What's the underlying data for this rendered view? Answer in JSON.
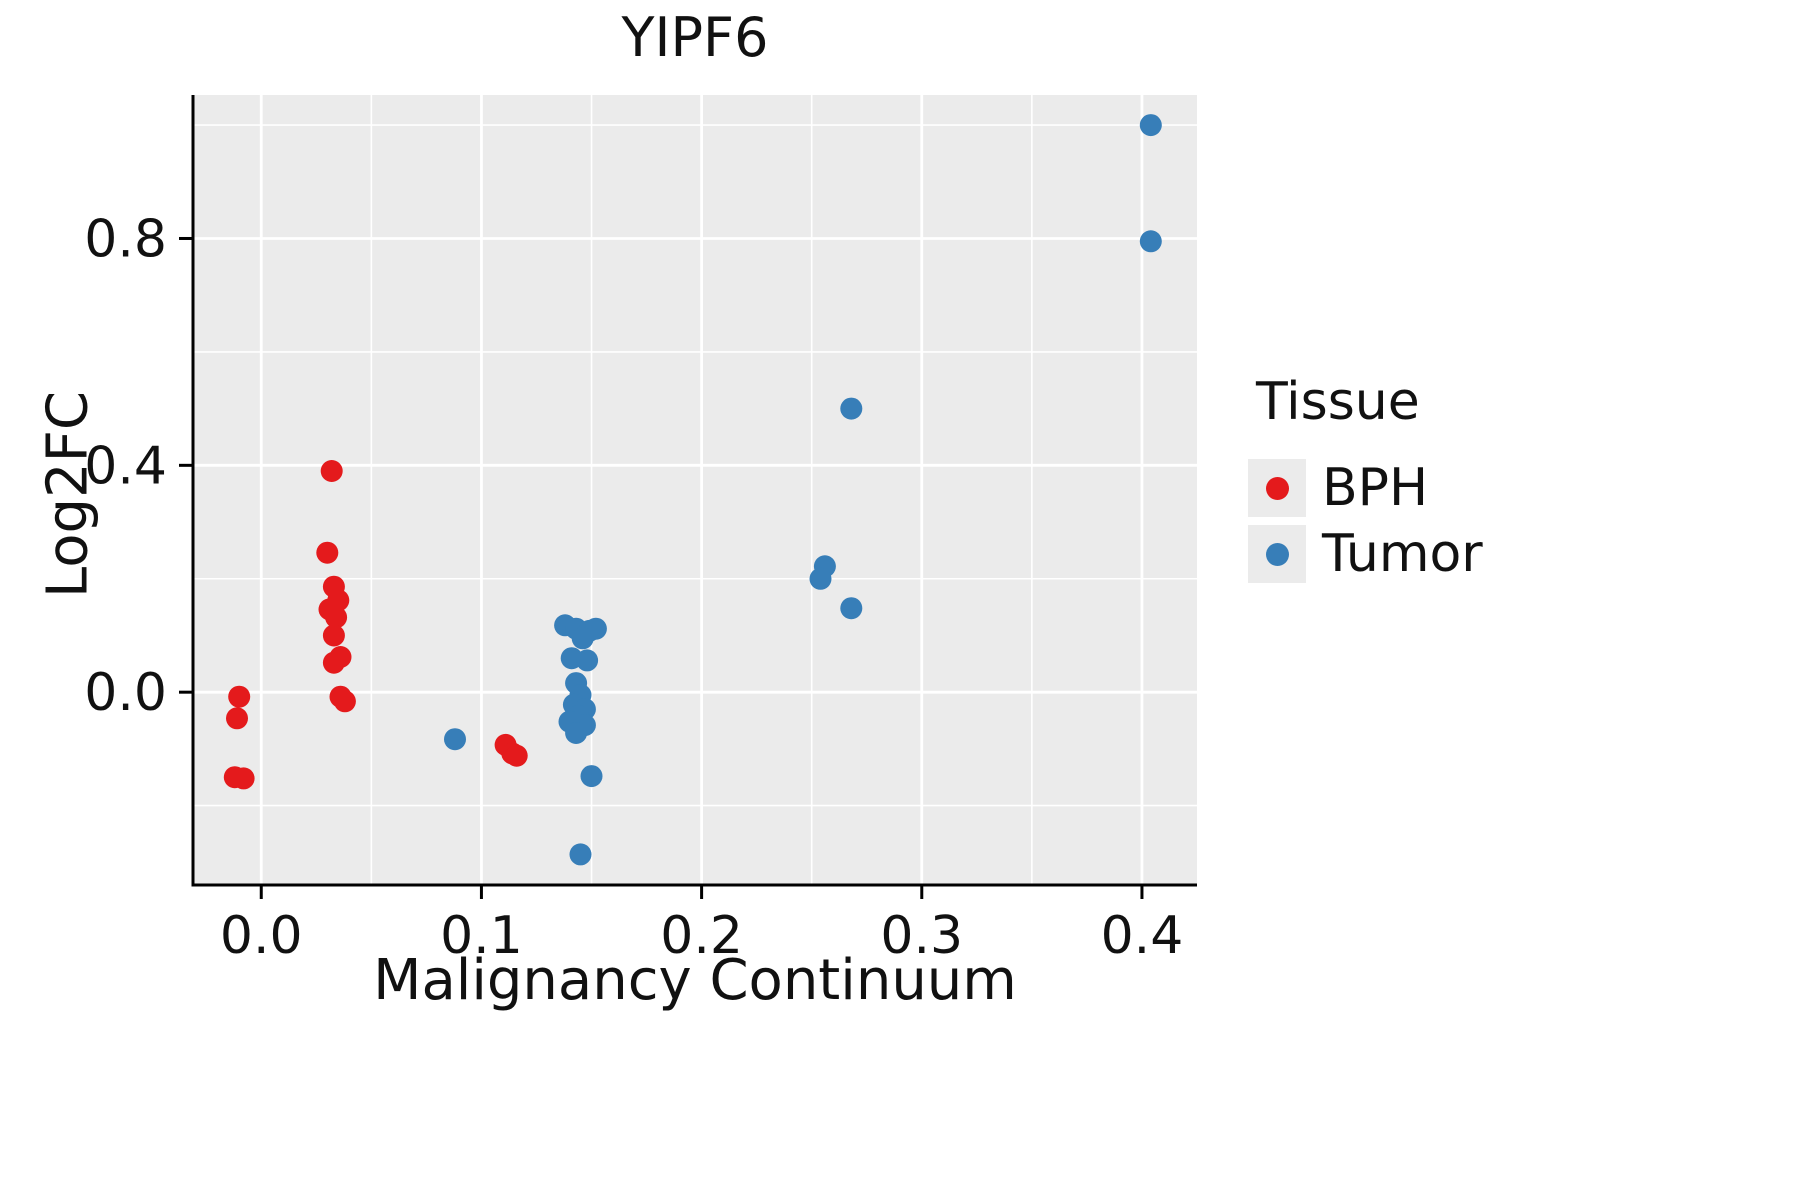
{
  "title": "YIPF6",
  "legend": {
    "title": "Tissue",
    "entries": [
      {
        "label": "BPH",
        "color": "#E41A1C"
      },
      {
        "label": "Tumor",
        "color": "#377EB8"
      }
    ]
  },
  "panel": {
    "background": "#EBEBEB",
    "grid_color": "#FFFFFF",
    "axis_color": "#000000"
  },
  "chart_data": {
    "type": "scatter",
    "title": "YIPF6",
    "xlabel": "Malignancy Continuum",
    "ylabel": "Log2FC",
    "xlim": [
      -0.031,
      0.425
    ],
    "ylim": [
      -0.34,
      1.053
    ],
    "xtick_values": [
      0.0,
      0.1,
      0.2,
      0.3,
      0.4
    ],
    "xtick_labels": [
      "0.0",
      "0.1",
      "0.2",
      "0.3",
      "0.4"
    ],
    "ytick_values": [
      0.0,
      0.4,
      0.8
    ],
    "ytick_labels": [
      "0.0",
      "0.4",
      "0.8"
    ],
    "grid": "major and minor white gridlines on grey panel",
    "legend_position": "right",
    "series": [
      {
        "name": "BPH",
        "color": "#E41A1C",
        "points": [
          [
            -0.01,
            -0.008
          ],
          [
            -0.011,
            -0.046
          ],
          [
            -0.012,
            -0.15
          ],
          [
            -0.008,
            -0.152
          ],
          [
            0.032,
            0.39
          ],
          [
            0.03,
            0.246
          ],
          [
            0.033,
            0.186
          ],
          [
            0.035,
            0.162
          ],
          [
            0.031,
            0.146
          ],
          [
            0.034,
            0.132
          ],
          [
            0.033,
            0.1
          ],
          [
            0.036,
            0.062
          ],
          [
            0.033,
            0.052
          ],
          [
            0.036,
            -0.008
          ],
          [
            0.038,
            -0.016
          ],
          [
            0.111,
            -0.093
          ],
          [
            0.114,
            -0.108
          ],
          [
            0.116,
            -0.112
          ]
        ]
      },
      {
        "name": "Tumor",
        "color": "#377EB8",
        "points": [
          [
            0.088,
            -0.083
          ],
          [
            0.138,
            0.118
          ],
          [
            0.143,
            0.112
          ],
          [
            0.149,
            0.108
          ],
          [
            0.152,
            0.112
          ],
          [
            0.146,
            0.095
          ],
          [
            0.141,
            0.06
          ],
          [
            0.148,
            0.056
          ],
          [
            0.143,
            0.016
          ],
          [
            0.145,
            -0.005
          ],
          [
            0.142,
            -0.022
          ],
          [
            0.147,
            -0.03
          ],
          [
            0.144,
            -0.042
          ],
          [
            0.14,
            -0.052
          ],
          [
            0.147,
            -0.058
          ],
          [
            0.143,
            -0.072
          ],
          [
            0.15,
            -0.148
          ],
          [
            0.145,
            -0.286
          ],
          [
            0.256,
            0.222
          ],
          [
            0.254,
            0.2
          ],
          [
            0.268,
            0.148
          ],
          [
            0.268,
            0.5
          ],
          [
            0.404,
            1.0
          ],
          [
            0.404,
            0.795
          ]
        ]
      }
    ]
  }
}
